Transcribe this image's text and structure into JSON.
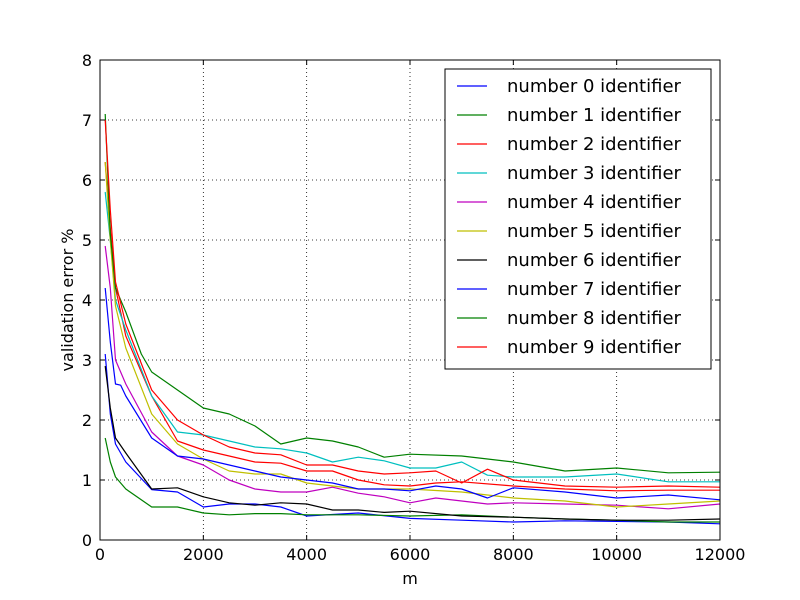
{
  "chart_data": {
    "type": "line",
    "title": "",
    "xlabel": "m",
    "ylabel": "validation error %",
    "xlim": [
      0,
      12000
    ],
    "ylim": [
      0,
      8
    ],
    "xticks": [
      0,
      2000,
      4000,
      6000,
      8000,
      10000,
      12000
    ],
    "yticks": [
      0,
      1,
      2,
      3,
      4,
      5,
      6,
      7,
      8
    ],
    "grid": true,
    "legend_position": "top-right",
    "series": [
      {
        "name": "number 0 identifier",
        "color": "#0000ff",
        "x": [
          100,
          200,
          300,
          500,
          1000,
          1500,
          2000,
          2500,
          3000,
          3500,
          4000,
          5000,
          6000,
          7000,
          8000,
          9000,
          10000,
          11000,
          12000
        ],
        "y": [
          3.1,
          2.1,
          1.6,
          1.3,
          0.84,
          0.8,
          0.55,
          0.6,
          0.6,
          0.55,
          0.4,
          0.45,
          0.36,
          0.33,
          0.3,
          0.32,
          0.31,
          0.3,
          0.27
        ]
      },
      {
        "name": "number 1 identifier",
        "color": "#008000",
        "x": [
          100,
          200,
          300,
          500,
          1000,
          1500,
          2000,
          2500,
          3000,
          3500,
          4000,
          5000,
          6000,
          7000,
          8000,
          9000,
          10000,
          11000,
          12000
        ],
        "y": [
          1.7,
          1.3,
          1.05,
          0.85,
          0.55,
          0.55,
          0.45,
          0.42,
          0.44,
          0.44,
          0.42,
          0.42,
          0.4,
          0.42,
          0.38,
          0.35,
          0.33,
          0.3,
          0.3
        ]
      },
      {
        "name": "number 2 identifier",
        "color": "#ff0000",
        "x": [
          100,
          200,
          300,
          500,
          1000,
          1500,
          2000,
          2500,
          3000,
          3500,
          4000,
          4500,
          5000,
          5500,
          6000,
          6500,
          7000,
          8000,
          9000,
          10000,
          11000,
          12000
        ],
        "y": [
          6.3,
          5.2,
          4.2,
          3.4,
          2.4,
          1.65,
          1.5,
          1.4,
          1.3,
          1.28,
          1.15,
          1.15,
          1.0,
          0.92,
          0.9,
          0.95,
          0.97,
          0.9,
          0.85,
          0.82,
          0.83,
          0.83
        ]
      },
      {
        "name": "number 3 identifier",
        "color": "#00bfbf",
        "x": [
          100,
          200,
          300,
          500,
          1000,
          1500,
          2000,
          2500,
          3000,
          3500,
          4000,
          4500,
          5000,
          5500,
          6000,
          6500,
          7000,
          7500,
          8000,
          9000,
          10000,
          11000,
          12000
        ],
        "y": [
          5.8,
          5.0,
          4.0,
          3.5,
          2.4,
          1.8,
          1.75,
          1.65,
          1.55,
          1.52,
          1.45,
          1.3,
          1.38,
          1.32,
          1.2,
          1.2,
          1.3,
          1.08,
          1.05,
          1.05,
          1.1,
          0.97,
          0.97
        ]
      },
      {
        "name": "number 4 identifier",
        "color": "#bf00bf",
        "x": [
          100,
          200,
          300,
          500,
          1000,
          1500,
          2000,
          2500,
          3000,
          3500,
          4000,
          4500,
          5000,
          5500,
          6000,
          6500,
          7000,
          7500,
          8000,
          9000,
          10000,
          11000,
          12000
        ],
        "y": [
          4.9,
          4.2,
          3.0,
          2.6,
          1.8,
          1.4,
          1.25,
          1.0,
          0.85,
          0.8,
          0.8,
          0.88,
          0.78,
          0.72,
          0.62,
          0.7,
          0.65,
          0.6,
          0.62,
          0.6,
          0.58,
          0.52,
          0.6
        ]
      },
      {
        "name": "number 5 identifier",
        "color": "#bfbf00",
        "x": [
          100,
          200,
          300,
          500,
          1000,
          1500,
          2000,
          2500,
          3000,
          3500,
          4000,
          5000,
          6000,
          7000,
          8000,
          9000,
          10000,
          11000,
          12000
        ],
        "y": [
          6.3,
          5.0,
          3.9,
          3.2,
          2.1,
          1.6,
          1.35,
          1.15,
          1.1,
          1.1,
          0.95,
          0.85,
          0.85,
          0.8,
          0.7,
          0.65,
          0.55,
          0.6,
          0.65
        ]
      },
      {
        "name": "number 6 identifier",
        "color": "#000000",
        "x": [
          100,
          200,
          300,
          500,
          1000,
          1500,
          2000,
          2500,
          3000,
          3500,
          4000,
          4500,
          5000,
          5500,
          6000,
          7000,
          8000,
          9000,
          10000,
          11000,
          12000
        ],
        "y": [
          2.9,
          2.2,
          1.7,
          1.45,
          0.85,
          0.87,
          0.72,
          0.62,
          0.58,
          0.62,
          0.6,
          0.5,
          0.5,
          0.46,
          0.48,
          0.4,
          0.38,
          0.35,
          0.33,
          0.33,
          0.35
        ]
      },
      {
        "name": "number 7 identifier",
        "color": "#0000ff",
        "x": [
          100,
          200,
          300,
          400,
          500,
          1000,
          1500,
          2000,
          2500,
          3000,
          3500,
          4000,
          4500,
          5000,
          5500,
          6000,
          6500,
          7000,
          7500,
          8000,
          9000,
          10000,
          11000,
          12000
        ],
        "y": [
          4.2,
          3.3,
          2.6,
          2.58,
          2.4,
          1.7,
          1.4,
          1.35,
          1.25,
          1.15,
          1.05,
          1.0,
          0.95,
          0.85,
          0.85,
          0.82,
          0.9,
          0.85,
          0.7,
          0.87,
          0.8,
          0.7,
          0.75,
          0.67
        ]
      },
      {
        "name": "number 8 identifier",
        "color": "#008000",
        "x": [
          100,
          200,
          300,
          500,
          800,
          1000,
          1500,
          2000,
          2500,
          3000,
          3500,
          4000,
          4500,
          5000,
          5500,
          6000,
          7000,
          8000,
          9000,
          10000,
          11000,
          12000
        ],
        "y": [
          7.1,
          5.1,
          4.2,
          3.8,
          3.1,
          2.8,
          2.5,
          2.2,
          2.1,
          1.9,
          1.6,
          1.7,
          1.65,
          1.55,
          1.38,
          1.43,
          1.4,
          1.3,
          1.15,
          1.2,
          1.12,
          1.13
        ]
      },
      {
        "name": "number 9 identifier",
        "color": "#ff0000",
        "x": [
          100,
          200,
          300,
          500,
          1000,
          1500,
          2000,
          2500,
          3000,
          3500,
          4000,
          4500,
          5000,
          5500,
          6000,
          6500,
          7000,
          7500,
          8000,
          9000,
          10000,
          11000,
          12000
        ],
        "y": [
          7.0,
          5.5,
          4.3,
          3.6,
          2.5,
          2.0,
          1.75,
          1.55,
          1.45,
          1.42,
          1.25,
          1.25,
          1.15,
          1.1,
          1.12,
          1.15,
          0.95,
          1.18,
          1.0,
          0.9,
          0.88,
          0.9,
          0.88
        ]
      }
    ]
  }
}
